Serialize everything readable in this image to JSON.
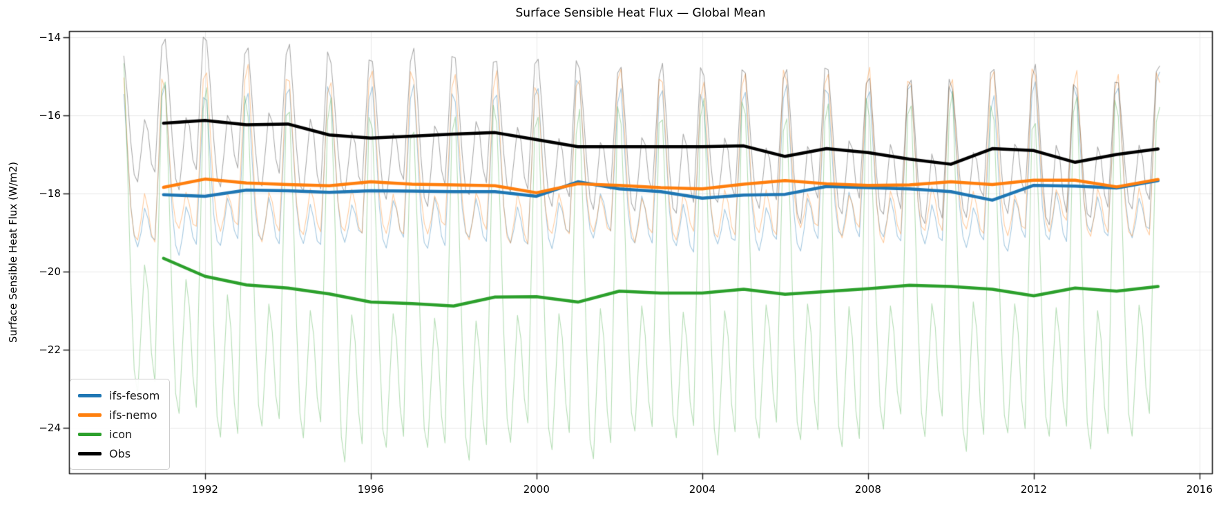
{
  "chart_data": {
    "type": "line",
    "title": "Surface Sensible Heat Flux — Global Mean",
    "xlabel": "",
    "ylabel": "Surface Sensible Heat Flux (W/m2)",
    "xlim": [
      1988.72,
      2016.32
    ],
    "ylim": [
      -25.17,
      -13.84
    ],
    "xticks": [
      1992,
      1996,
      2000,
      2004,
      2008,
      2012,
      2016
    ],
    "yticks": [
      -14,
      -16,
      -18,
      -20,
      -22,
      -24
    ],
    "grid": true,
    "legend_position": "lower left",
    "years": [
      1991,
      1992,
      1993,
      1994,
      1995,
      1996,
      1997,
      1998,
      1999,
      2000,
      2001,
      2002,
      2003,
      2004,
      2005,
      2006,
      2007,
      2008,
      2009,
      2010,
      2011,
      2012,
      2013,
      2014,
      2015
    ],
    "series": [
      {
        "name": "ifs-fesom",
        "color": "#1f77b4",
        "annual_mean": [
          -18.03,
          -18.07,
          -17.91,
          -17.93,
          -17.97,
          -17.93,
          -17.94,
          -17.95,
          -17.95,
          -18.07,
          -17.7,
          -17.88,
          -17.95,
          -18.12,
          -18.04,
          -18.02,
          -17.82,
          -17.85,
          -17.88,
          -17.95,
          -18.17,
          -17.79,
          -17.81,
          -17.86,
          -17.67
        ],
        "monthly_mean_1990": -18.0,
        "seasonal_offsets": [
          2.55,
          1.1,
          -0.4,
          -1.15,
          -1.35,
          -0.9,
          -0.25,
          -0.55,
          -1.1,
          -1.25,
          0.5,
          2.45
        ],
        "thin_alpha": 0.4
      },
      {
        "name": "ifs-nemo",
        "color": "#ff7f0e",
        "annual_mean": [
          -17.84,
          -17.63,
          -17.73,
          -17.77,
          -17.8,
          -17.7,
          -17.76,
          -17.78,
          -17.8,
          -17.98,
          -17.75,
          -17.79,
          -17.85,
          -17.88,
          -17.76,
          -17.67,
          -17.75,
          -17.79,
          -17.78,
          -17.7,
          -17.77,
          -17.66,
          -17.66,
          -17.83,
          -17.64
        ],
        "monthly_mean_1990": -17.9,
        "seasonal_offsets": [
          2.75,
          1.2,
          -0.35,
          -1.1,
          -1.3,
          -0.85,
          -0.2,
          -0.5,
          -1.05,
          -1.2,
          0.55,
          2.6
        ],
        "thin_alpha": 0.4
      },
      {
        "name": "icon",
        "color": "#2ca02c",
        "annual_mean": [
          -19.66,
          -20.12,
          -20.34,
          -20.42,
          -20.57,
          -20.78,
          -20.82,
          -20.88,
          -20.65,
          -20.64,
          -20.78,
          -20.5,
          -20.55,
          -20.55,
          -20.45,
          -20.58,
          -20.51,
          -20.44,
          -20.35,
          -20.38,
          -20.45,
          -20.62,
          -20.42,
          -20.5,
          -20.38
        ],
        "monthly_mean_1990": -19.15,
        "seasonal_offsets": [
          4.6,
          2.1,
          -1.0,
          -3.3,
          -3.85,
          -2.1,
          -0.4,
          -1.1,
          -2.8,
          -3.5,
          0.6,
          4.5
        ],
        "thin_alpha": 0.35
      },
      {
        "name": "Obs",
        "color": "#000000",
        "annual_mean": [
          -16.2,
          -16.13,
          -16.24,
          -16.22,
          -16.5,
          -16.58,
          -16.53,
          -16.48,
          -16.44,
          -16.62,
          -16.8,
          -16.8,
          -16.8,
          -16.8,
          -16.78,
          -17.05,
          -16.85,
          -16.95,
          -17.12,
          -17.25,
          -16.85,
          -16.9,
          -17.2,
          -17.0,
          -16.86
        ],
        "monthly_mean_1990": -16.3,
        "seasonal_offsets": [
          2.0,
          0.9,
          -0.45,
          -1.4,
          -1.6,
          -0.75,
          0.2,
          -0.05,
          -0.95,
          -1.25,
          0.35,
          1.95
        ],
        "thin_alpha": 0.33
      }
    ],
    "monthly": {
      "start_year": 1990,
      "end_year": 2015,
      "points_per_year": 12
    },
    "style": {
      "grid_color": "#e8e8e8",
      "spine_color": "#1a1a1a",
      "thick_line_width": 4.5,
      "thin_line_width": 1.1,
      "background": "#ffffff"
    }
  }
}
